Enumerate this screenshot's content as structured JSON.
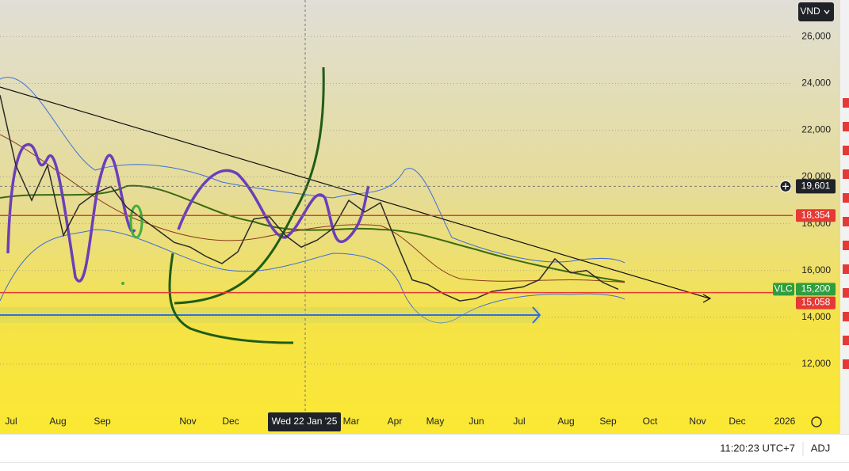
{
  "toolbar": {
    "currency": "VND"
  },
  "chart_data": {
    "type": "line",
    "symbol": "VLC",
    "color": "#2b2b2b",
    "ylim": [
      10000,
      27500
    ],
    "yticks": [
      {
        "value": 12000,
        "label": "12,000"
      },
      {
        "value": 14000,
        "label": "14,000"
      },
      {
        "value": 16000,
        "label": "16,000"
      },
      {
        "value": 18000,
        "label": "18,000"
      },
      {
        "value": 20000,
        "label": "20,000"
      },
      {
        "value": 22000,
        "label": "22,000"
      },
      {
        "value": 24000,
        "label": "24,000"
      },
      {
        "value": 26000,
        "label": "26,000"
      }
    ],
    "values": [
      23500,
      20500,
      19000,
      20500,
      17500,
      18800,
      19300,
      19600,
      18700,
      18200,
      17700,
      17200,
      17000,
      16600,
      16300,
      16800,
      18200,
      18300,
      17500,
      17000,
      17300,
      17800,
      19000,
      18500,
      18900,
      17200,
      15600,
      15400,
      15000,
      14700,
      14800,
      15100,
      15200,
      15300,
      15600,
      16500,
      15900,
      16000,
      15500,
      15200
    ],
    "x_labels": [
      "Jul",
      "Aug",
      "Sep",
      "Nov",
      "Dec",
      "Mar",
      "Apr",
      "May",
      "Jun",
      "Jul",
      "Aug",
      "Sep",
      "Oct",
      "Nov",
      "Dec",
      "2026"
    ],
    "crosshair": {
      "date_label": "Wed 22 Jan '25",
      "price": 19601,
      "price_label": "19,601"
    },
    "last_price": 15200,
    "last_price_label": "15,200",
    "levels": [
      {
        "value": 18354,
        "label": "18,354",
        "color": "#e53935"
      },
      {
        "value": 15058,
        "label": "15,058",
        "color": "#e53935"
      }
    ]
  },
  "status_bar": {
    "time": "11:20:23 UTC+7",
    "adjust": "ADJ"
  }
}
